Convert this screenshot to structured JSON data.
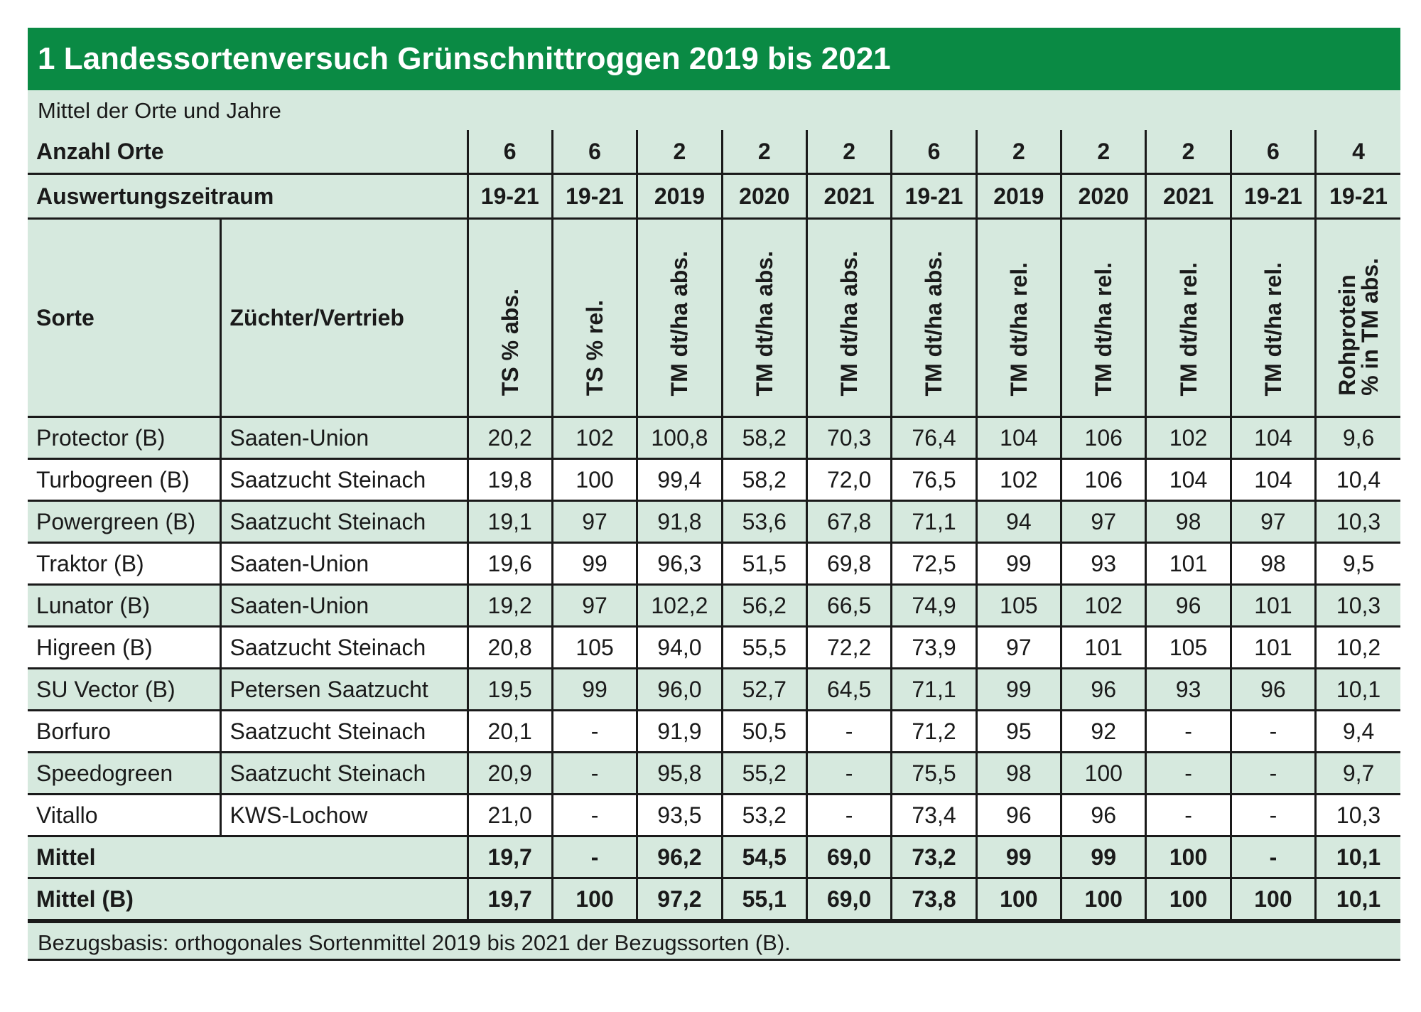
{
  "title": "1 Landessortenversuch Grünschnittroggen 2019 bis 2021",
  "subtitle": "Mittel der Orte und Jahre",
  "header": {
    "anzahl_label": "Anzahl Orte",
    "anzahl": [
      "6",
      "6",
      "2",
      "2",
      "2",
      "6",
      "2",
      "2",
      "2",
      "6",
      "4"
    ],
    "zeitraum_label": "Auswertungszeitraum",
    "zeitraum": [
      "19-21",
      "19-21",
      "2019",
      "2020",
      "2021",
      "19-21",
      "2019",
      "2020",
      "2021",
      "19-21",
      "19-21"
    ],
    "sorte_label": "Sorte",
    "zuechter_label": "Züchter/Vertrieb",
    "columns": [
      "TS % abs.",
      "TS % rel.",
      "TM dt/ha abs.",
      "TM dt/ha abs.",
      "TM dt/ha abs.",
      "TM dt/ha abs.",
      "TM dt/ha rel.",
      "TM dt/ha rel.",
      "TM dt/ha rel.",
      "TM dt/ha rel.",
      "Rohprotein\n% in TM abs."
    ]
  },
  "rows": [
    {
      "sorte": "Protector (B)",
      "zuechter": "Saaten-Union",
      "values": [
        "20,2",
        "102",
        "100,8",
        "58,2",
        "70,3",
        "76,4",
        "104",
        "106",
        "102",
        "104",
        "9,6"
      ]
    },
    {
      "sorte": "Turbogreen (B)",
      "zuechter": "Saatzucht Steinach",
      "values": [
        "19,8",
        "100",
        "99,4",
        "58,2",
        "72,0",
        "76,5",
        "102",
        "106",
        "104",
        "104",
        "10,4"
      ]
    },
    {
      "sorte": "Powergreen (B)",
      "zuechter": "Saatzucht Steinach",
      "values": [
        "19,1",
        "97",
        "91,8",
        "53,6",
        "67,8",
        "71,1",
        "94",
        "97",
        "98",
        "97",
        "10,3"
      ]
    },
    {
      "sorte": "Traktor (B)",
      "zuechter": "Saaten-Union",
      "values": [
        "19,6",
        "99",
        "96,3",
        "51,5",
        "69,8",
        "72,5",
        "99",
        "93",
        "101",
        "98",
        "9,5"
      ]
    },
    {
      "sorte": "Lunator (B)",
      "zuechter": "Saaten-Union",
      "values": [
        "19,2",
        "97",
        "102,2",
        "56,2",
        "66,5",
        "74,9",
        "105",
        "102",
        "96",
        "101",
        "10,3"
      ]
    },
    {
      "sorte": "Higreen (B)",
      "zuechter": "Saatzucht Steinach",
      "values": [
        "20,8",
        "105",
        "94,0",
        "55,5",
        "72,2",
        "73,9",
        "97",
        "101",
        "105",
        "101",
        "10,2"
      ]
    },
    {
      "sorte": "SU Vector (B)",
      "zuechter": "Petersen Saatzucht",
      "values": [
        "19,5",
        "99",
        "96,0",
        "52,7",
        "64,5",
        "71,1",
        "99",
        "96",
        "93",
        "96",
        "10,1"
      ]
    },
    {
      "sorte": "Borfuro",
      "zuechter": "Saatzucht Steinach",
      "values": [
        "20,1",
        "-",
        "91,9",
        "50,5",
        "-",
        "71,2",
        "95",
        "92",
        "-",
        "-",
        "9,4"
      ]
    },
    {
      "sorte": "Speedogreen",
      "zuechter": "Saatzucht Steinach",
      "values": [
        "20,9",
        "-",
        "95,8",
        "55,2",
        "-",
        "75,5",
        "98",
        "100",
        "-",
        "-",
        "9,7"
      ]
    },
    {
      "sorte": "Vitallo",
      "zuechter": "KWS-Lochow",
      "values": [
        "21,0",
        "-",
        "93,5",
        "53,2",
        "-",
        "73,4",
        "96",
        "96",
        "-",
        "-",
        "10,3"
      ]
    }
  ],
  "summary": [
    {
      "label": "Mittel",
      "values": [
        "19,7",
        "-",
        "96,2",
        "54,5",
        "69,0",
        "73,2",
        "99",
        "99",
        "100",
        "-",
        "10,1"
      ]
    },
    {
      "label": "Mittel (B)",
      "values": [
        "19,7",
        "100",
        "97,2",
        "55,1",
        "69,0",
        "73,8",
        "100",
        "100",
        "100",
        "100",
        "10,1"
      ]
    }
  ],
  "footer": "Bezugsbasis: orthogonales Sortenmittel 2019 bis 2021 der Bezugssorten (B).",
  "colors": {
    "title_bg": "#0a8a44",
    "shade": "#d6e9de"
  }
}
